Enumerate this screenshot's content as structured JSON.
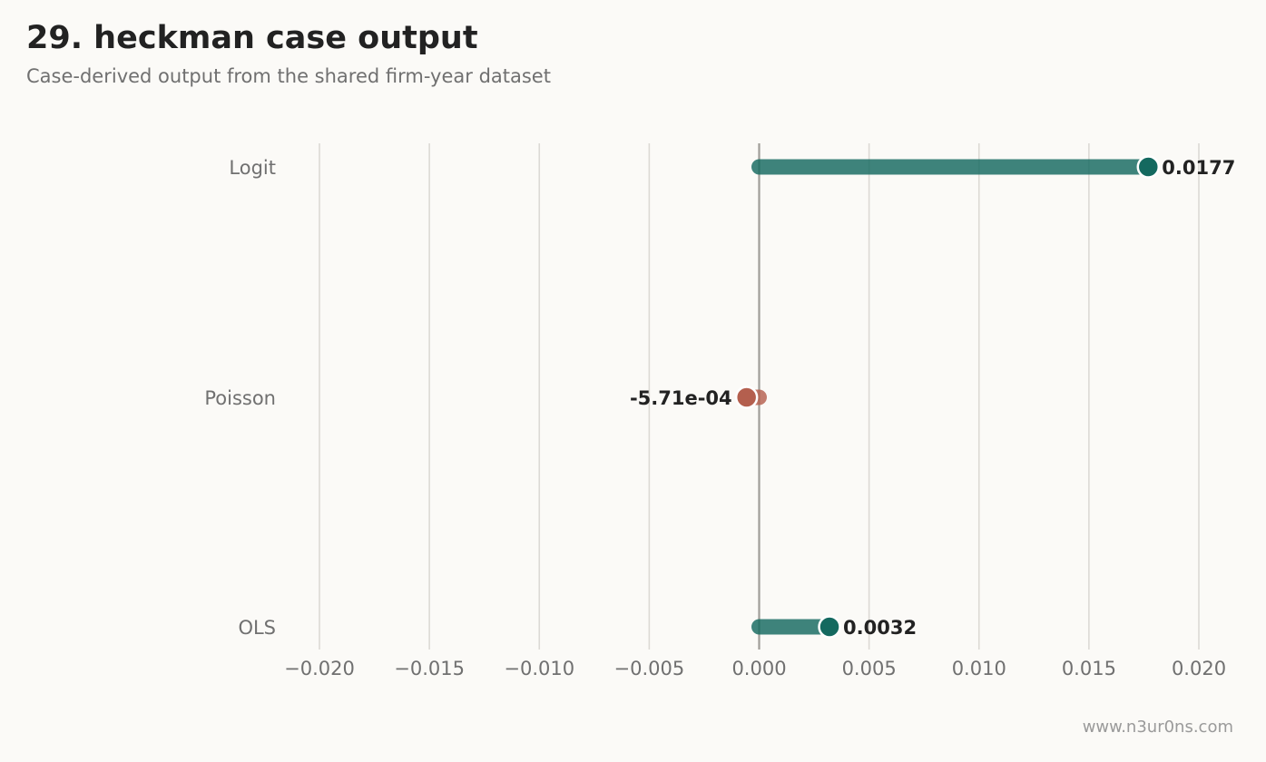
{
  "header": {
    "title": "29. heckman case output",
    "subtitle": "Case-derived output from the shared firm-year dataset"
  },
  "footer": {
    "watermark": "www.n3ur0ns.com"
  },
  "colors": {
    "positive": "#14695f",
    "negative": "#b45f4e",
    "grid": "#dcdad5",
    "zero_line": "#a09e98",
    "tick_text": "#707070",
    "label_text": "#222222"
  },
  "chart_data": {
    "type": "lollipop",
    "title": "29. heckman case output",
    "subtitle": "Case-derived output from the shared firm-year dataset",
    "xlabel": "",
    "ylabel": "",
    "xlim": [
      -0.022,
      0.022
    ],
    "x_ticks": [
      -0.02,
      -0.015,
      -0.01,
      -0.005,
      0.0,
      0.005,
      0.01,
      0.015,
      0.02
    ],
    "x_tick_labels": [
      "−0.020",
      "−0.015",
      "−0.010",
      "−0.005",
      "0.000",
      "0.005",
      "0.010",
      "0.015",
      "0.020"
    ],
    "grid": "vertical",
    "categories": [
      "Logit",
      "Poisson",
      "OLS"
    ],
    "values": [
      0.0177,
      -0.000571,
      0.0032
    ],
    "value_labels": [
      "0.0177",
      "-5.71e-04",
      "0.0032"
    ]
  }
}
